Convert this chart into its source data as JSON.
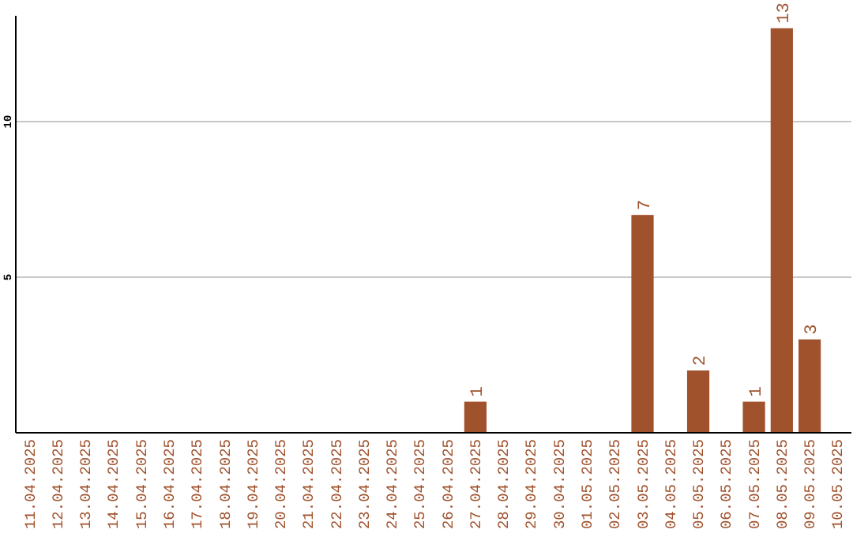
{
  "chart_data": {
    "type": "bar",
    "categories": [
      "11.04.2025",
      "12.04.2025",
      "13.04.2025",
      "14.04.2025",
      "15.04.2025",
      "16.04.2025",
      "17.04.2025",
      "18.04.2025",
      "19.04.2025",
      "20.04.2025",
      "21.04.2025",
      "22.04.2025",
      "23.04.2025",
      "24.04.2025",
      "25.04.2025",
      "26.04.2025",
      "27.04.2025",
      "28.04.2025",
      "29.04.2025",
      "30.04.2025",
      "01.05.2025",
      "02.05.2025",
      "03.05.2025",
      "04.05.2025",
      "05.05.2025",
      "06.05.2025",
      "07.05.2025",
      "08.05.2025",
      "09.05.2025",
      "10.05.2025"
    ],
    "values": [
      0,
      0,
      0,
      0,
      0,
      0,
      0,
      0,
      0,
      0,
      0,
      0,
      0,
      0,
      0,
      0,
      1,
      0,
      0,
      0,
      0,
      0,
      7,
      0,
      2,
      0,
      1,
      13,
      3,
      0
    ],
    "value_labels": [
      null,
      null,
      null,
      null,
      null,
      null,
      null,
      null,
      null,
      null,
      null,
      null,
      null,
      null,
      null,
      null,
      "1",
      null,
      null,
      null,
      null,
      null,
      "7",
      null,
      "2",
      null,
      "1",
      "13",
      "3",
      null
    ],
    "color": "#a0522d",
    "ylim": [
      0,
      13.4
    ],
    "yticks": [
      5,
      10
    ],
    "grid": "y"
  }
}
